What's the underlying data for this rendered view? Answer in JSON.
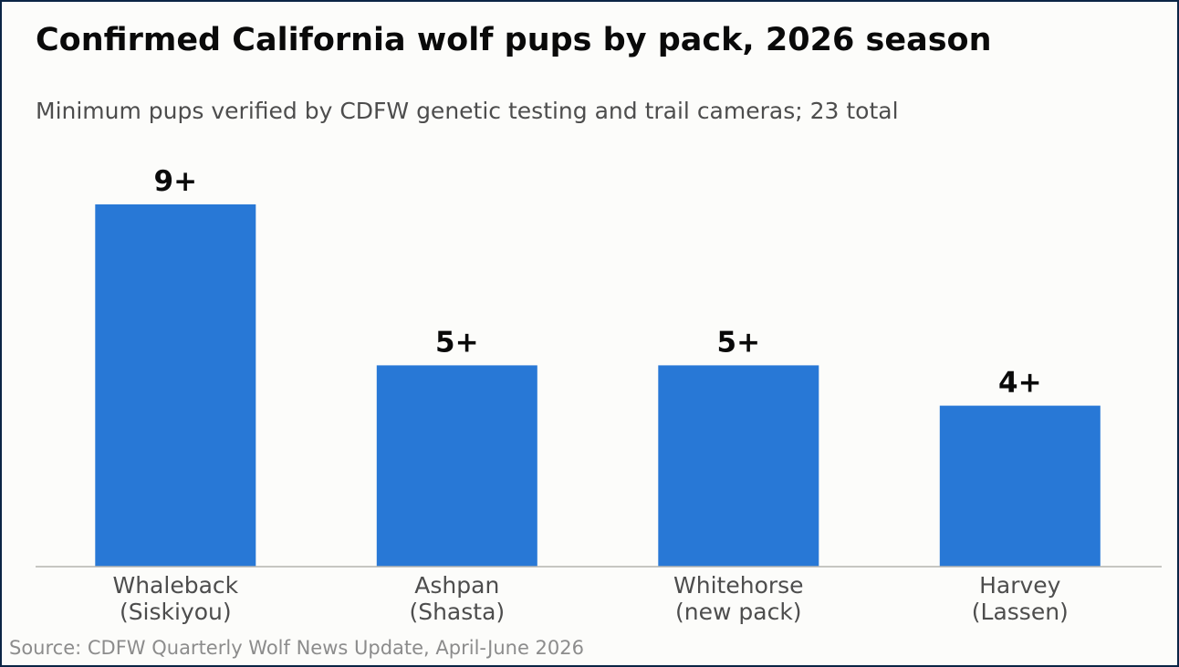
{
  "chart_data": {
    "type": "bar",
    "title": "Confirmed California wolf pups by pack, 2026 season",
    "subtitle": "Minimum pups verified by CDFW genetic testing and trail cameras; 23 total",
    "categories": [
      [
        "Whaleback",
        "(Siskiyou)"
      ],
      [
        "Ashpan",
        "(Shasta)"
      ],
      [
        "Whitehorse",
        "(new pack)"
      ],
      [
        "Harvey",
        "(Lassen)"
      ]
    ],
    "values": [
      9,
      5,
      5,
      4
    ],
    "data_labels": [
      "9+",
      "5+",
      "5+",
      "4+"
    ],
    "xlabel": "",
    "ylabel": "",
    "ylim": [
      0,
      9
    ],
    "grid": false,
    "legend": "none",
    "bar_color": "#2878d6",
    "source": "Source: CDFW Quarterly Wolf News Update, April-June 2026"
  }
}
